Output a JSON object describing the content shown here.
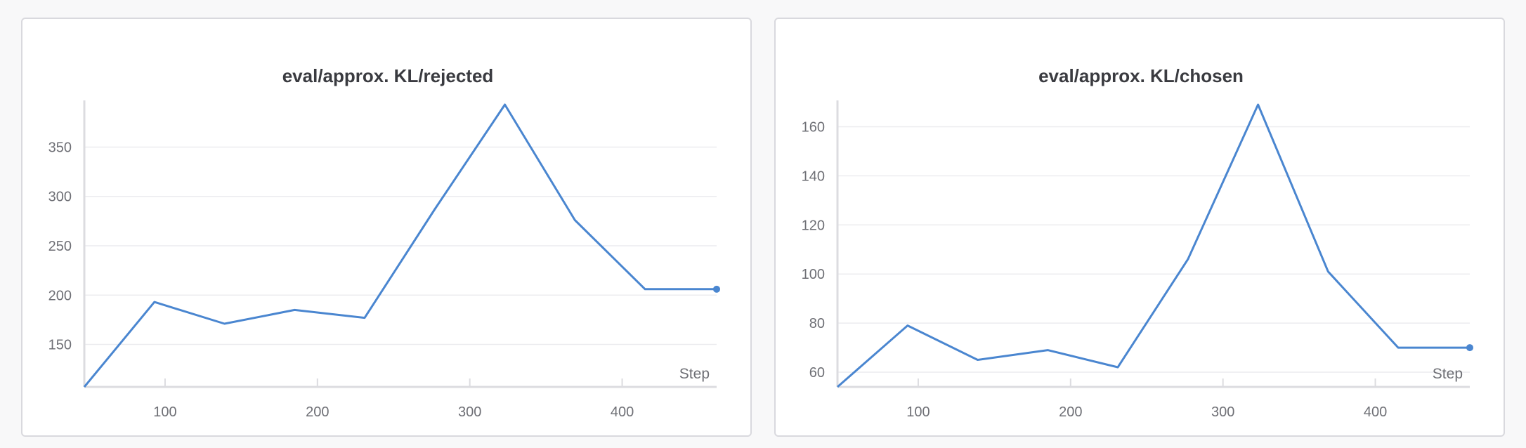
{
  "chart_data": [
    {
      "type": "line",
      "title": "eval/approx. KL/rejected",
      "xlabel": "Step",
      "ylabel": "",
      "xlim": [
        47,
        462
      ],
      "ylim": [
        107,
        393
      ],
      "xticks": [
        100,
        200,
        300,
        400
      ],
      "yticks": [
        150,
        200,
        250,
        300,
        350
      ],
      "grid": true,
      "color": "#4a86d0",
      "series": [
        {
          "x": [
            47,
            93,
            139,
            185,
            231,
            277,
            323,
            369,
            415,
            462
          ],
          "y": [
            107,
            193,
            171,
            185,
            177,
            287,
            393,
            276,
            206,
            206
          ]
        }
      ]
    },
    {
      "type": "line",
      "title": "eval/approx. KL/chosen",
      "xlabel": "Step",
      "ylabel": "",
      "xlim": [
        47,
        462
      ],
      "ylim": [
        54,
        169
      ],
      "xticks": [
        100,
        200,
        300,
        400
      ],
      "yticks": [
        60,
        80,
        100,
        120,
        140,
        160
      ],
      "grid": true,
      "color": "#4a86d0",
      "series": [
        {
          "x": [
            47,
            93,
            139,
            185,
            231,
            277,
            323,
            369,
            415,
            462
          ],
          "y": [
            54,
            79,
            65,
            69,
            62,
            106,
            169,
            101,
            70,
            70
          ]
        }
      ]
    }
  ]
}
